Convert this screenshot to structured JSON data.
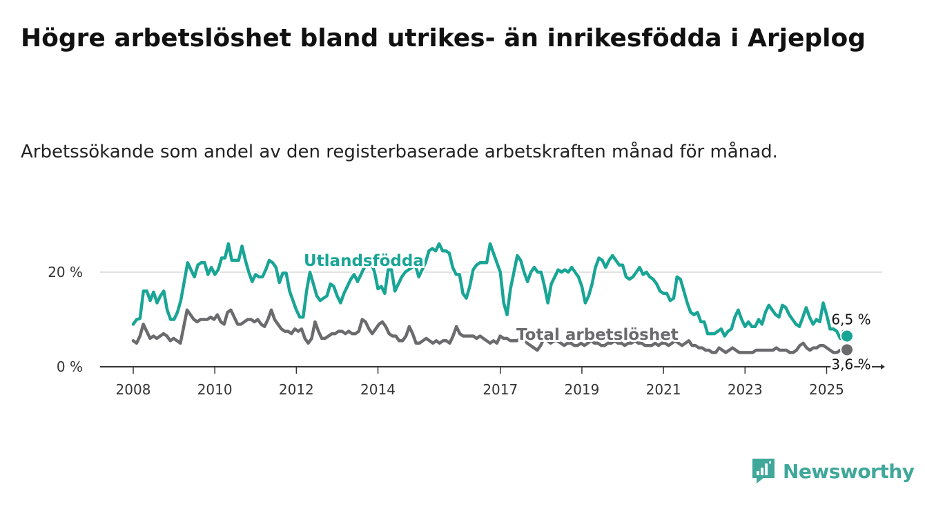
{
  "title": "Högre arbetslöshet bland utrikes- än inrikesfödda i Arjeplog",
  "subtitle": "Arbetssökande som andel av den registerbaserade arbetskraften månad för månad.",
  "brand": {
    "name": "Newsworthy",
    "logo_icon": "bar-chart-speech-bubble-icon",
    "color": "#3fa89a"
  },
  "chart_data": {
    "type": "line",
    "x_tick_labels": [
      "2008",
      "2010",
      "2012",
      "2014",
      "2017",
      "2019",
      "2021",
      "2023",
      "2025"
    ],
    "y_tick_labels": [
      "0 %",
      "20 %"
    ],
    "ylim": [
      0,
      30
    ],
    "grid": true,
    "series": [
      {
        "name": "Utlandsfödda",
        "color": "#19a596",
        "end_label": "6,5 %",
        "values": [
          9,
          10,
          10.2,
          16,
          16,
          14,
          15.8,
          13.5,
          15,
          16,
          12,
          10,
          10,
          11.5,
          14,
          18,
          22,
          20.5,
          19,
          21.5,
          22,
          22,
          19.5,
          21,
          19.5,
          20.5,
          23,
          23,
          26,
          22.5,
          22.5,
          22.5,
          25.5,
          22.5,
          20,
          18,
          19.5,
          19,
          19,
          20.5,
          22.5,
          22,
          21,
          17.8,
          19.8,
          19.8,
          16,
          14,
          12,
          10.5,
          10.5,
          16,
          20,
          17.5,
          15,
          14,
          14.5,
          15,
          17.5,
          17,
          15,
          13.5,
          15.5,
          17,
          18.5,
          19.5,
          18,
          19.5,
          21,
          21.5,
          22,
          20,
          16.5,
          17,
          15.5,
          20.5,
          20.5,
          16,
          17.5,
          19,
          20,
          20.5,
          21,
          21.5,
          19,
          20.5,
          22,
          24.5,
          25,
          24.5,
          26,
          24.5,
          24.5,
          24,
          21,
          19.5,
          19.5,
          15.5,
          14.5,
          17,
          20.5,
          21.5,
          22,
          22,
          22,
          26,
          24,
          22,
          20,
          13.5,
          11,
          16.5,
          20,
          23.5,
          22.5,
          20,
          18,
          20,
          21,
          20,
          20,
          17,
          13.5,
          17.5,
          19,
          20.5,
          20,
          20.5,
          20,
          21,
          20,
          19,
          17,
          13.5,
          15,
          17.5,
          21,
          23,
          22.5,
          21,
          22.5,
          23.5,
          22.5,
          21.5,
          21.5,
          19,
          18.5,
          19,
          20,
          21,
          19.5,
          20,
          19,
          18.5,
          17.5,
          16,
          15.5,
          15.5,
          14,
          14.5,
          19,
          18.5,
          16,
          13.5,
          11.5,
          11,
          11.5,
          9.5,
          9.5,
          7,
          7,
          7,
          7.5,
          8,
          6.5,
          7.5,
          8,
          10.5,
          12,
          10,
          8.5,
          9.5,
          8.5,
          8.5,
          10,
          9,
          11.5,
          13,
          12,
          11,
          10.5,
          13,
          12.5,
          11,
          10,
          9,
          8.5,
          10.5,
          12.5,
          10.5,
          9,
          10,
          9.5,
          13.5,
          11,
          8,
          8,
          7.5,
          6,
          7.5,
          6.5
        ]
      },
      {
        "name": "Total arbetslöshet",
        "color": "#6b6b6e",
        "end_label": "3,6 %",
        "values": [
          5.5,
          5,
          6.5,
          9,
          7.5,
          6,
          6.5,
          6,
          6.5,
          7,
          6.5,
          5.5,
          6,
          5.5,
          5,
          8.5,
          12,
          11,
          10,
          9.5,
          10,
          10,
          10,
          10.5,
          10,
          11,
          9.5,
          9,
          11.5,
          12,
          10.5,
          9,
          9,
          9.5,
          10,
          10,
          9.5,
          10,
          9,
          8.5,
          10,
          12,
          10,
          9,
          8,
          7.5,
          7.5,
          7,
          8,
          7.5,
          8,
          6,
          5,
          6,
          9.5,
          7.5,
          6,
          6,
          6.5,
          7,
          7,
          7.5,
          7.5,
          7,
          7.5,
          7,
          7,
          7.5,
          10,
          9.5,
          8,
          7,
          8,
          9,
          9.5,
          8.5,
          7,
          6.5,
          6.5,
          5.5,
          5.5,
          6.5,
          8.5,
          7,
          5,
          5,
          5.5,
          6,
          5.5,
          5,
          5.5,
          5,
          5.5,
          5.5,
          5,
          6.5,
          8.5,
          7,
          6.5,
          6.5,
          6.5,
          6.5,
          6,
          6.5,
          6,
          5.5,
          5,
          5.5,
          5,
          6.5,
          6,
          6,
          5.5,
          5.5,
          5.5,
          6,
          6,
          5,
          4.5,
          4,
          3.5,
          4.5,
          6,
          5.5,
          5,
          5.5,
          5.5,
          5,
          4.5,
          5,
          5,
          4.5,
          4.5,
          5,
          4.5,
          5,
          5.5,
          5,
          5,
          4.5,
          4.5,
          5,
          5,
          5.5,
          5,
          5,
          4.5,
          5,
          5,
          5.5,
          5,
          5,
          4.5,
          4.5,
          4.5,
          5,
          4.5,
          5,
          5,
          4.5,
          5,
          5.5,
          5,
          4.5,
          5,
          5.5,
          4.5,
          4.5,
          4,
          4,
          3.5,
          3.5,
          3,
          3,
          4,
          3.5,
          3,
          3.5,
          4,
          3.5,
          3,
          3,
          3,
          3,
          3,
          3.5,
          3.5,
          3.5,
          3.5,
          3.5,
          3.5,
          4,
          3.5,
          3.5,
          3.5,
          3,
          3,
          3.5,
          4.5,
          5,
          4,
          3.5,
          4,
          4,
          4.5,
          4.5,
          4,
          3.5,
          3,
          3,
          3.5,
          3.5,
          3.6
        ]
      }
    ]
  }
}
